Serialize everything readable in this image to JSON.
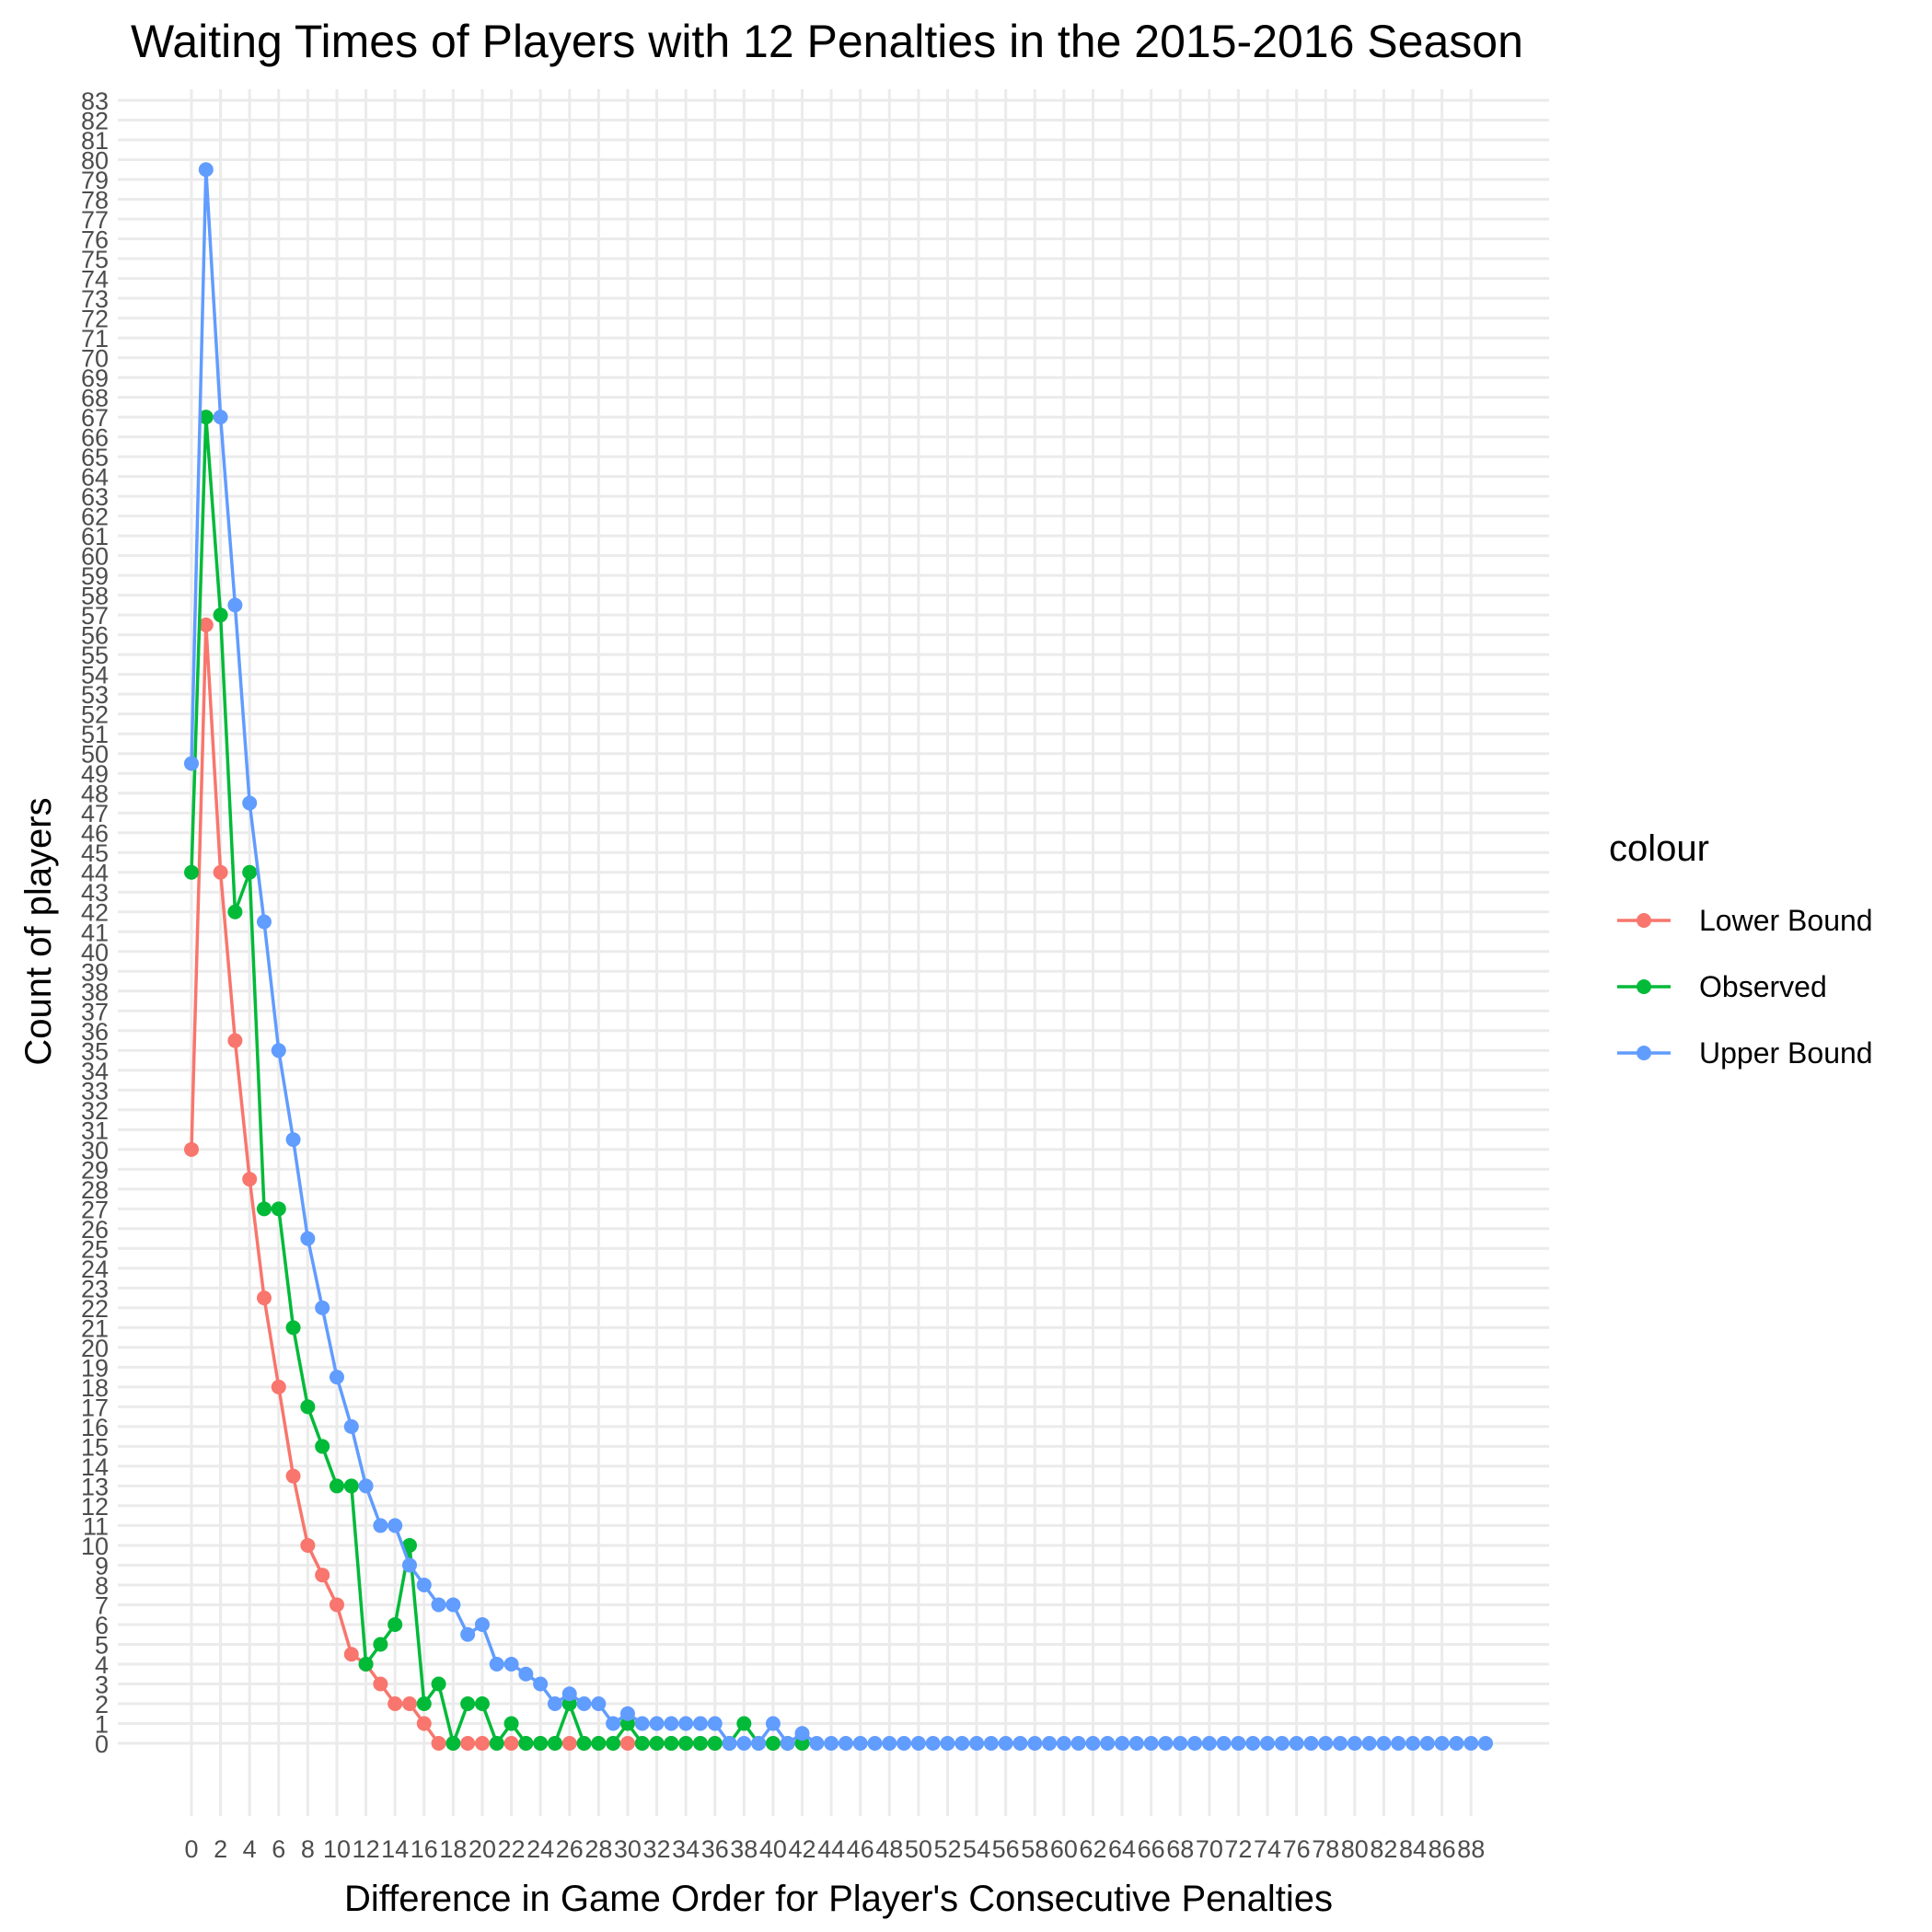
{
  "chart_data": {
    "type": "line",
    "title": "Waiting Times of Players with 12 Penalties in the 2015-2016 Season",
    "xlabel": "Difference in Game Order for Player's Consecutive Penalties",
    "ylabel": "Count of players",
    "xlim": [
      0,
      89
    ],
    "ylim": [
      0,
      83
    ],
    "x_ticks": [
      0,
      2,
      4,
      6,
      8,
      10,
      12,
      14,
      16,
      18,
      20,
      22,
      24,
      26,
      28,
      30,
      32,
      34,
      36,
      38,
      40,
      42,
      44,
      46,
      48,
      50,
      52,
      54,
      56,
      58,
      60,
      62,
      64,
      66,
      68,
      70,
      72,
      74,
      76,
      78,
      80,
      82,
      84,
      86,
      88
    ],
    "y_ticks": [
      0,
      1,
      2,
      3,
      4,
      5,
      6,
      7,
      8,
      9,
      10,
      11,
      12,
      13,
      14,
      15,
      16,
      17,
      18,
      19,
      20,
      21,
      22,
      23,
      24,
      25,
      26,
      27,
      28,
      29,
      30,
      31,
      32,
      33,
      34,
      35,
      36,
      37,
      38,
      39,
      40,
      41,
      42,
      43,
      44,
      45,
      46,
      47,
      48,
      49,
      50,
      51,
      52,
      53,
      54,
      55,
      56,
      57,
      58,
      59,
      60,
      61,
      62,
      63,
      64,
      65,
      66,
      67,
      68,
      69,
      70,
      71,
      72,
      73,
      74,
      75,
      76,
      77,
      78,
      79,
      80,
      81,
      82,
      83
    ],
    "grid": true,
    "legend": {
      "title": "colour",
      "position": "right"
    },
    "series": [
      {
        "name": "Lower Bound",
        "color": "#F8766D",
        "x": [
          0,
          1,
          2,
          3,
          4,
          5,
          6,
          7,
          8,
          9,
          10,
          11,
          12,
          13,
          14,
          15,
          16,
          17,
          18,
          19,
          20,
          21,
          22,
          23,
          24,
          25,
          26,
          27,
          28,
          29,
          30,
          31,
          32,
          33,
          34,
          35,
          36,
          40,
          42
        ],
        "y": [
          30,
          56.5,
          44,
          35.5,
          28.5,
          22.5,
          18,
          13.5,
          10,
          8.5,
          7,
          4.5,
          4,
          3,
          2,
          2,
          1,
          0,
          0,
          0,
          0,
          0,
          0,
          0,
          0,
          0,
          0,
          0,
          0,
          0,
          0,
          0,
          0,
          0,
          0,
          0,
          0,
          0,
          0
        ]
      },
      {
        "name": "Observed",
        "color": "#00BA38",
        "x": [
          0,
          1,
          2,
          3,
          4,
          5,
          6,
          7,
          8,
          9,
          10,
          11,
          12,
          13,
          14,
          15,
          16,
          17,
          18,
          19,
          20,
          21,
          22,
          23,
          24,
          25,
          26,
          27,
          28,
          29,
          30,
          31,
          32,
          33,
          34,
          35,
          36,
          37,
          38,
          39,
          40,
          41,
          42
        ],
        "y": [
          44,
          67,
          57,
          42,
          44,
          27,
          27,
          21,
          17,
          15,
          13,
          13,
          4,
          5,
          6,
          10,
          2,
          3,
          0,
          2,
          2,
          0,
          1,
          0,
          0,
          0,
          2,
          0,
          0,
          0,
          1,
          0,
          0,
          0,
          0,
          0,
          0,
          0,
          1,
          0,
          0,
          0,
          0
        ]
      },
      {
        "name": "Upper Bound",
        "color": "#619CFF",
        "x": [
          0,
          1,
          2,
          3,
          4,
          5,
          6,
          7,
          8,
          9,
          10,
          11,
          12,
          13,
          14,
          15,
          16,
          17,
          18,
          19,
          20,
          21,
          22,
          23,
          24,
          25,
          26,
          27,
          28,
          29,
          30,
          31,
          32,
          33,
          34,
          35,
          36,
          37,
          38,
          39,
          40,
          41,
          42,
          43,
          44,
          45,
          46,
          47,
          48,
          49,
          50,
          51,
          52,
          53,
          54,
          55,
          56,
          57,
          58,
          59,
          60,
          61,
          62,
          63,
          64,
          65,
          66,
          67,
          68,
          69,
          70,
          71,
          72,
          73,
          74,
          75,
          76,
          77,
          78,
          79,
          80,
          81,
          82,
          83,
          84,
          85,
          86,
          87,
          88,
          89
        ],
        "y": [
          49.5,
          79.5,
          67,
          57.5,
          47.5,
          41.5,
          35,
          30.5,
          25.5,
          22,
          18.5,
          16,
          13,
          11,
          11,
          9,
          8,
          7,
          7,
          5.5,
          6,
          4,
          4,
          3.5,
          3,
          2,
          2.5,
          2,
          2,
          1,
          1.5,
          1,
          1,
          1,
          1,
          1,
          1,
          0,
          0,
          0,
          1,
          0,
          0.5,
          0,
          0,
          0,
          0,
          0,
          0,
          0,
          0,
          0,
          0,
          0,
          0,
          0,
          0,
          0,
          0,
          0,
          0,
          0,
          0,
          0,
          0,
          0,
          0,
          0,
          0,
          0,
          0,
          0,
          0,
          0,
          0,
          0,
          0,
          0,
          0,
          0,
          0,
          0,
          0,
          0,
          0,
          0,
          0,
          0,
          0,
          0
        ]
      }
    ]
  }
}
